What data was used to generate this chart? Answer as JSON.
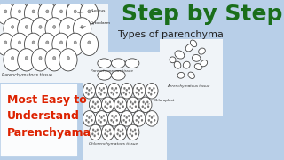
{
  "bg_color": "#b8cfe8",
  "title_step": "Step by Step",
  "title_step_color": "#1a6e1a",
  "title_sub": "Types of parenchyma",
  "title_sub_color": "#222222",
  "left_text_line1": "Most Easy to",
  "left_text_line2": "Understand",
  "left_text_line3": "Parenchyama",
  "left_text_color": "#dd2200",
  "label_nucleus": "Nucleus",
  "label_cytoplasm": "Cytoplasm",
  "label_parenchyma1": "Parenchymatous tissue",
  "label_parenchyma2": "Parenchymatous tissue",
  "label_chlorenchyma": "Chlorenchymatous tissue",
  "label_aerenchyma": "Aerenchymatous tissue",
  "sketch_bg": "#e8eef5",
  "paper_bg": "#f0f4f8"
}
